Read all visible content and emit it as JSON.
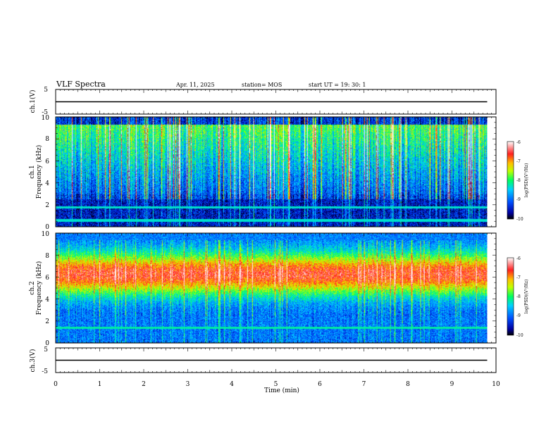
{
  "header": {
    "title": "VLF Spectra",
    "date": "Apr. 11, 2025",
    "station": "station= MOS",
    "start": "start  UT  =    19: 30: 1"
  },
  "chart_data": [
    {
      "type": "line",
      "name": "ch1-waveform",
      "ylabel": "ch.1(V)",
      "ylim": [
        -5,
        5
      ],
      "yticks": [
        "5",
        "-5"
      ],
      "trace_level": 0
    },
    {
      "type": "heatmap",
      "name": "ch1-spectrogram",
      "ylabel": "ch.1",
      "ylabel2": "Frequency (kHz)",
      "ylim": [
        0,
        10
      ],
      "yticks": [
        "0",
        "2",
        "4",
        "6",
        "8",
        "10"
      ],
      "colorbar": {
        "label": "log(PSD)(V²/Hz)",
        "range": [
          -10,
          -6
        ],
        "ticks": [
          "-6",
          "-7",
          "-8",
          "-9",
          "-10"
        ]
      }
    },
    {
      "type": "heatmap",
      "name": "ch2-spectrogram",
      "ylabel": "ch.2",
      "ylabel2": "Frequency (kHz)",
      "ylim": [
        0,
        10
      ],
      "yticks": [
        "0",
        "2",
        "4",
        "6",
        "8",
        "10"
      ],
      "colorbar": {
        "label": "log(PSD)(V²/Hz)",
        "range": [
          -10,
          -6
        ],
        "ticks": [
          "-6",
          "-7",
          "-8",
          "-9",
          "-10"
        ]
      }
    },
    {
      "type": "line",
      "name": "ch3-waveform",
      "ylabel": "ch.3(V)",
      "ylim": [
        -5,
        5
      ],
      "yticks": [
        "5",
        "-5"
      ],
      "trace_level": 0
    }
  ],
  "xaxis": {
    "label": "Time  (min)",
    "xlim": [
      0,
      10
    ],
    "ticks": [
      "0",
      "1",
      "2",
      "3",
      "4",
      "5",
      "6",
      "7",
      "8",
      "9",
      "10"
    ],
    "data_end": 9.8
  },
  "colors": {
    "background": "#000010",
    "scale": [
      "#000080",
      "#0040ff",
      "#00c0ff",
      "#00e080",
      "#40ff40",
      "#c0ff00",
      "#ffd000",
      "#ff6000",
      "#ff1010",
      "#ff8080",
      "#ffffff"
    ]
  }
}
